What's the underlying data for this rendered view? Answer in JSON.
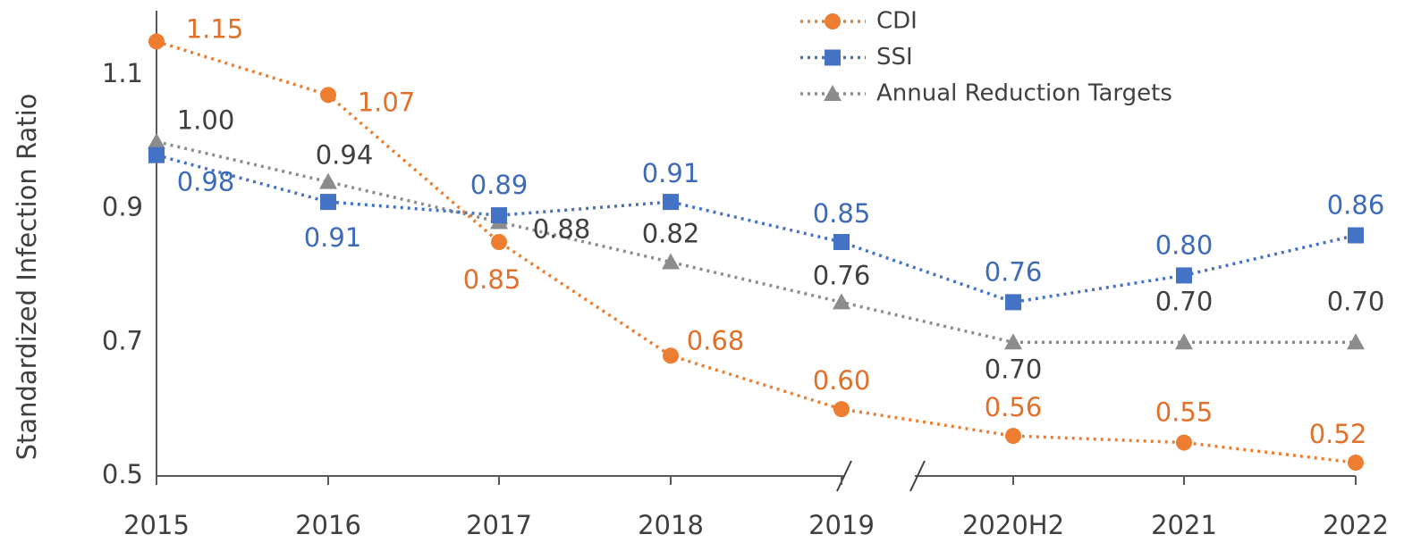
{
  "chart_data": {
    "type": "line",
    "y_label": "Standardized Infection Ratio",
    "categories": [
      "2015",
      "2016",
      "2017",
      "2018",
      "2019",
      "2020H2",
      "2021",
      "2022"
    ],
    "series": [
      {
        "name": "CDI",
        "color": "#ed7d31",
        "marker": "circle",
        "values": [
          1.15,
          1.07,
          0.85,
          0.68,
          0.6,
          0.56,
          0.55,
          0.52
        ],
        "value_labels": [
          "1.15",
          "1.07",
          "0.85",
          "0.68",
          "0.60",
          "0.56",
          "0.55",
          "0.52"
        ]
      },
      {
        "name": "SSI",
        "color": "#4472c4",
        "marker": "square",
        "values": [
          0.98,
          0.91,
          0.89,
          0.91,
          0.85,
          0.76,
          0.8,
          0.86
        ],
        "value_labels": [
          "0.98",
          "0.91",
          "0.89",
          "0.91",
          "0.85",
          "0.76",
          "0.80",
          "0.86"
        ]
      },
      {
        "name": "Annual Reduction Targets",
        "color": "#8c8c8c",
        "marker": "triangle",
        "values": [
          1.0,
          0.94,
          0.88,
          0.82,
          0.76,
          0.7,
          0.7,
          0.7
        ],
        "value_labels": [
          "1.00",
          "0.94",
          "0.88",
          "0.82",
          "0.76",
          "0.70",
          "0.70",
          "0.70"
        ]
      }
    ],
    "ylim": [
      0.5,
      1.2
    ],
    "yticks": [
      0.5,
      0.7,
      0.9,
      1.1
    ],
    "legend": "top-right"
  }
}
